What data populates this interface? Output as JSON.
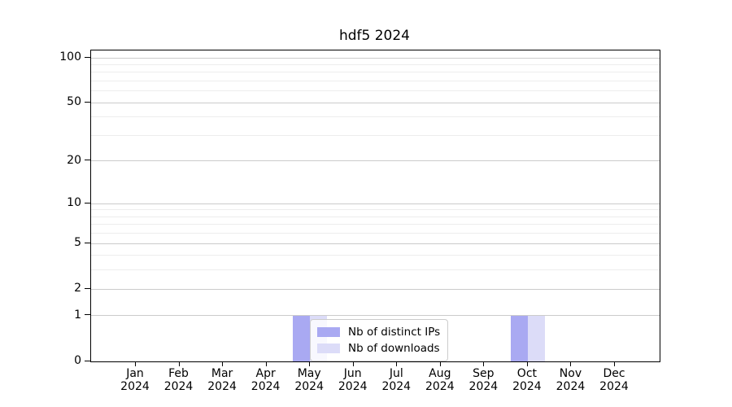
{
  "chart_data": {
    "type": "bar",
    "title": "hdf5 2024",
    "categories": [
      "Jan",
      "Feb",
      "Mar",
      "Apr",
      "May",
      "Jun",
      "Jul",
      "Aug",
      "Sep",
      "Oct",
      "Nov",
      "Dec"
    ],
    "x_year_label": "2024",
    "series": [
      {
        "name": "Nb of distinct IPs",
        "color": "#a9a9f2",
        "values": [
          0,
          0,
          0,
          0,
          1,
          0,
          0,
          0,
          0,
          1,
          0,
          0
        ]
      },
      {
        "name": "Nb of downloads",
        "color": "#dcdcf8",
        "values": [
          0,
          0,
          0,
          0,
          1,
          0,
          0,
          0,
          0,
          1,
          0,
          0
        ]
      }
    ],
    "xlabel": "",
    "ylabel": "",
    "y_scale": "log1p",
    "ylim": [
      0,
      112
    ],
    "y_ticks": [
      0,
      1,
      2,
      5,
      10,
      20,
      50,
      100
    ],
    "y_minor_ticks": [
      3,
      4,
      6,
      7,
      8,
      9,
      30,
      40,
      60,
      70,
      80,
      90
    ],
    "grid": "horizontal-major-and-minor",
    "legend_position": "lower center",
    "colors": {
      "grid_major": "#cbcbcb",
      "grid_minor": "#ededed",
      "spine": "#000000",
      "background": "#ffffff",
      "text": "#000000"
    }
  }
}
